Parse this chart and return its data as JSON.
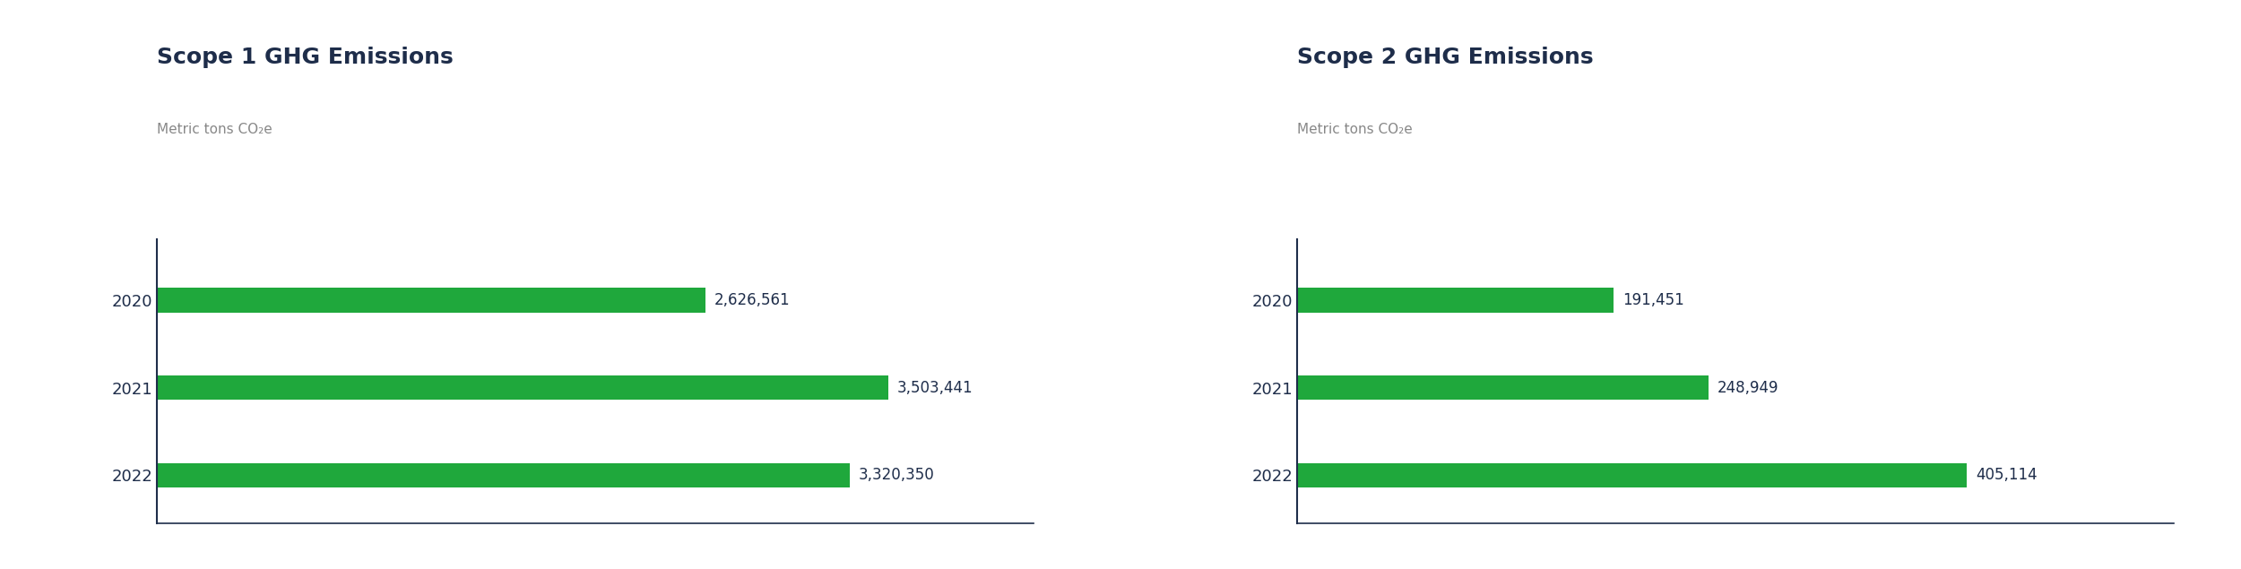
{
  "chart1": {
    "title": "Scope 1 GHG Emissions",
    "ylabel": "Metric tons CO₂e",
    "years": [
      "2020",
      "2021",
      "2022"
    ],
    "values": [
      2626561,
      3503441,
      3320350
    ],
    "labels": [
      "2,626,561",
      "3,503,441",
      "3,320,350"
    ],
    "xlim": [
      0,
      4200000
    ]
  },
  "chart2": {
    "title": "Scope 2 GHG Emissions",
    "ylabel": "Metric tons CO₂e",
    "years": [
      "2020",
      "2021",
      "2022"
    ],
    "values": [
      191451,
      248949,
      405114
    ],
    "labels": [
      "191,451",
      "248,949",
      "405,114"
    ],
    "xlim": [
      0,
      530000
    ]
  },
  "bar_color": "#1fa83c",
  "bar_height": 0.28,
  "title_color": "#1e2d4a",
  "title_fontsize": 18,
  "ylabel_color": "#888888",
  "ylabel_fontsize": 11,
  "year_label_color": "#1e2d4a",
  "year_label_fontsize": 13,
  "value_label_color": "#1e2d4a",
  "value_label_fontsize": 12,
  "axis_line_color": "#1e2d4a",
  "background_color": "#ffffff"
}
